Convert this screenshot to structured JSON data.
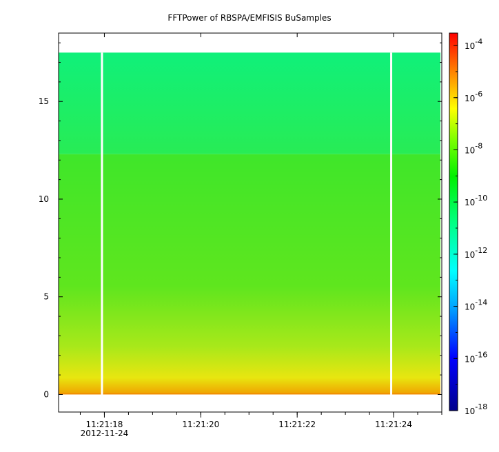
{
  "chart_data": {
    "type": "heatmap",
    "title": "FFTPower of RBSPA/EMFISIS  BuSamples",
    "xlabel": "",
    "ylabel": "",
    "x_ticks": [
      {
        "label": "11:21:18",
        "sublabel": "2012-11-24",
        "t": 18
      },
      {
        "label": "11:21:20",
        "t": 20
      },
      {
        "label": "11:21:22",
        "t": 22
      },
      {
        "label": "11:21:24",
        "t": 24
      }
    ],
    "x_range_seconds": [
      17.05,
      25.0
    ],
    "x_minor_tick_step_seconds": 0.5,
    "y_ticks": [
      0,
      5,
      10,
      15
    ],
    "ylim": [
      -0.9,
      18.5
    ],
    "data_y_range": [
      0,
      17.5
    ],
    "band_boundary_y": 12.3,
    "data_gaps_seconds": [
      17.95,
      23.95
    ],
    "colorbar": {
      "scale": "log",
      "range": [
        1e-18,
        0.0003
      ],
      "ticks": [
        "-4",
        "-6",
        "-8",
        "-10",
        "-12",
        "-14",
        "-16",
        "-18"
      ],
      "base": "10"
    },
    "grid": false,
    "colors": {
      "band_low_freq": "#f0e600",
      "band_mid": "#39e61e",
      "band_high": "#15f07a"
    }
  }
}
